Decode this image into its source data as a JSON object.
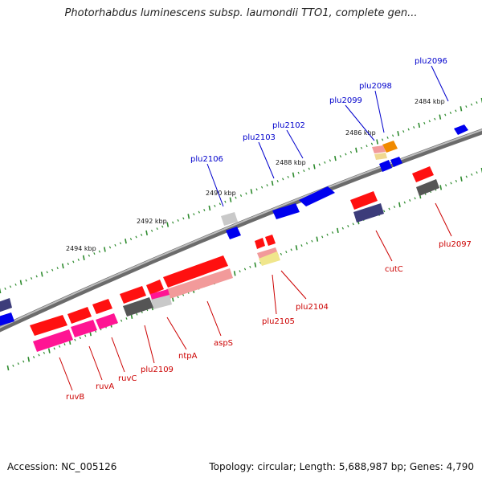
{
  "title": "Photorhabdus luminescens subsp. laumondii TTO1, complete gen...",
  "accession": "Accession: NC_005126",
  "topology": "Topology: circular; Length: 5,688,987 bp; Genes: 4,790",
  "colors": {
    "backbone": "#808080",
    "tick": "#2e8b2e",
    "forward_label": "#0000cc",
    "reverse_label": "#cc0000"
  },
  "scale_labels": [
    "2484 kbp",
    "2486 kbp",
    "2488 kbp",
    "2490 kbp",
    "2492 kbp",
    "2494 kbp"
  ],
  "forward_genes": [
    "plu2096",
    "plu2098",
    "plu2099",
    "plu2102",
    "plu2103",
    "plu2106"
  ],
  "reverse_genes": [
    "plu2097",
    "cutC",
    "plu2104",
    "plu2105",
    "aspS",
    "ntpA",
    "plu2109",
    "ruvC",
    "ruvA",
    "ruvB"
  ]
}
